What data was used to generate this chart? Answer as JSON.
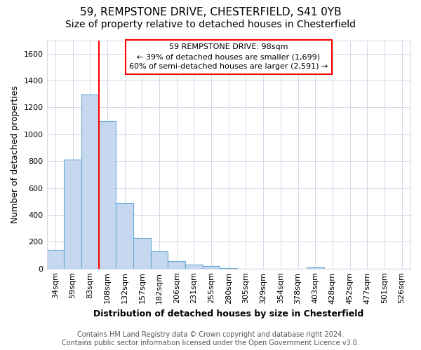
{
  "title1": "59, REMPSTONE DRIVE, CHESTERFIELD, S41 0YB",
  "title2": "Size of property relative to detached houses in Chesterfield",
  "xlabel": "Distribution of detached houses by size in Chesterfield",
  "ylabel": "Number of detached properties",
  "categories": [
    "34sqm",
    "59sqm",
    "83sqm",
    "108sqm",
    "132sqm",
    "157sqm",
    "182sqm",
    "206sqm",
    "231sqm",
    "255sqm",
    "280sqm",
    "305sqm",
    "329sqm",
    "354sqm",
    "378sqm",
    "403sqm",
    "428sqm",
    "452sqm",
    "477sqm",
    "501sqm",
    "526sqm"
  ],
  "bar_heights": [
    140,
    810,
    1295,
    1100,
    490,
    230,
    130,
    55,
    30,
    20,
    5,
    0,
    0,
    0,
    0,
    10,
    0,
    0,
    0,
    0,
    0
  ],
  "bar_color": "#c5d8f0",
  "bar_edge_color": "#6aaad4",
  "ylim": [
    0,
    1700
  ],
  "yticks": [
    0,
    200,
    400,
    600,
    800,
    1000,
    1200,
    1400,
    1600
  ],
  "property_line_x": 2.5,
  "annotation_line1": "59 REMPSTONE DRIVE: 98sqm",
  "annotation_line2": "← 39% of detached houses are smaller (1,699)",
  "annotation_line3": "60% of semi-detached houses are larger (2,591) →",
  "footer": "Contains HM Land Registry data © Crown copyright and database right 2024.\nContains public sector information licensed under the Open Government Licence v3.0.",
  "background_color": "#ffffff",
  "grid_color": "#d0d8e8",
  "title1_fontsize": 11,
  "title2_fontsize": 10,
  "xlabel_fontsize": 9,
  "ylabel_fontsize": 9,
  "tick_fontsize": 8,
  "annotation_fontsize": 8,
  "footer_fontsize": 7
}
